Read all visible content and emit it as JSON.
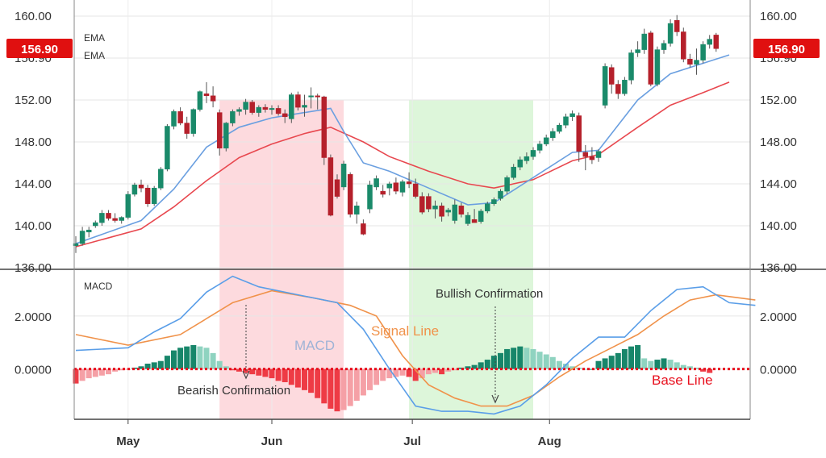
{
  "chart_data": {
    "type": "candlestick-macd",
    "colors": {
      "up": "#1a8a6a",
      "down": "#b5202b",
      "ema_fast": "#6a9fe0",
      "ema_slow": "#e8484f",
      "macd": "#5a9ee8",
      "signal": "#f0924a",
      "hist_up_strong": "#17866a",
      "hist_up_weak": "#8fd3c0",
      "hist_down_strong": "#ee3b45",
      "hist_down_weak": "#f5a0a6",
      "base_line": "#e8101e",
      "bearish_zone": "#fdd3d8",
      "bullish_zone": "#d7f5d4",
      "badge": "#e01010"
    },
    "price_panel": {
      "legend": [
        "EMA",
        "EMA"
      ],
      "yticks": [
        "160.00",
        "156.90",
        "152.00",
        "148.00",
        "144.00",
        "140.00",
        "136.00"
      ],
      "ytick_values": [
        160,
        156,
        152,
        148,
        144,
        140,
        136
      ],
      "ylim": [
        136,
        160.5
      ],
      "last_price": 156.9,
      "last_price_label": "156.90",
      "candles": [
        [
          138.1,
          139.0,
          137.4,
          138.3
        ],
        [
          138.3,
          139.9,
          138.1,
          139.5
        ],
        [
          139.4,
          139.9,
          138.9,
          139.6
        ],
        [
          140.0,
          140.5,
          139.8,
          140.3
        ],
        [
          140.3,
          141.5,
          140.0,
          141.2
        ],
        [
          141.2,
          141.5,
          140.5,
          140.7
        ],
        [
          140.7,
          141.2,
          140.3,
          140.5
        ],
        [
          140.5,
          140.9,
          140.2,
          140.8
        ],
        [
          140.8,
          143.3,
          140.6,
          143.0
        ],
        [
          143.0,
          144.1,
          142.8,
          143.9
        ],
        [
          143.9,
          144.4,
          143.2,
          143.6
        ],
        [
          143.6,
          143.9,
          141.8,
          142.1
        ],
        [
          142.1,
          143.8,
          141.9,
          143.6
        ],
        [
          143.6,
          145.6,
          143.4,
          145.4
        ],
        [
          145.4,
          149.7,
          145.2,
          149.5
        ],
        [
          149.5,
          151.1,
          149.2,
          150.9
        ],
        [
          150.9,
          151.3,
          149.6,
          149.8
        ],
        [
          149.8,
          150.4,
          148.3,
          148.8
        ],
        [
          148.8,
          151.2,
          148.5,
          151.1
        ],
        [
          151.1,
          152.9,
          150.9,
          152.8
        ],
        [
          152.6,
          153.7,
          151.7,
          152.4
        ],
        [
          152.4,
          153.3,
          151.3,
          151.9
        ],
        [
          150.8,
          151.1,
          146.7,
          147.4
        ],
        [
          147.4,
          149.9,
          147.1,
          149.8
        ],
        [
          149.8,
          151.1,
          149.5,
          150.9
        ],
        [
          150.9,
          151.3,
          150.5,
          151.1
        ],
        [
          151.1,
          152.1,
          150.6,
          151.8
        ],
        [
          151.8,
          152.0,
          150.6,
          150.8
        ],
        [
          150.8,
          151.5,
          150.4,
          151.3
        ],
        [
          151.3,
          151.6,
          150.8,
          151.1
        ],
        [
          151.1,
          151.5,
          150.6,
          151.2
        ],
        [
          151.2,
          151.5,
          150.5,
          150.7
        ],
        [
          150.7,
          151.1,
          149.8,
          150.4
        ],
        [
          150.2,
          152.7,
          149.8,
          152.5
        ],
        [
          152.5,
          152.8,
          151.0,
          151.3
        ],
        [
          151.3,
          152.5,
          150.4,
          151.5
        ],
        [
          152.3,
          153.2,
          151.2,
          152.4
        ],
        [
          152.4,
          152.6,
          151.1,
          152.3
        ],
        [
          152.3,
          152.4,
          145.8,
          146.5
        ],
        [
          146.5,
          146.8,
          140.9,
          141.0
        ],
        [
          144.4,
          144.9,
          142.6,
          142.8
        ],
        [
          143.7,
          146.2,
          143.4,
          145.9
        ],
        [
          144.9,
          145.1,
          140.8,
          141.1
        ],
        [
          141.1,
          142.3,
          140.2,
          141.9
        ],
        [
          140.2,
          140.6,
          139.1,
          139.2
        ],
        [
          141.6,
          144.3,
          141.2,
          143.9
        ],
        [
          143.7,
          144.8,
          143.4,
          144.5
        ],
        [
          143.3,
          143.9,
          142.7,
          143.0
        ],
        [
          143.6,
          144.2,
          142.9,
          144.0
        ],
        [
          144.1,
          144.6,
          143.0,
          143.3
        ],
        [
          143.2,
          144.4,
          142.8,
          144.2
        ],
        [
          144.2,
          145.1,
          143.6,
          144.0
        ],
        [
          144.0,
          144.5,
          142.6,
          142.8
        ],
        [
          142.8,
          143.2,
          141.1,
          141.3
        ],
        [
          142.8,
          143.1,
          141.3,
          141.6
        ],
        [
          141.6,
          142.4,
          140.7,
          141.9
        ],
        [
          141.9,
          142.2,
          140.4,
          140.9
        ],
        [
          141.3,
          141.7,
          140.9,
          141.5
        ],
        [
          140.5,
          142.5,
          140.2,
          142.0
        ],
        [
          141.9,
          142.2,
          140.8,
          141.1
        ],
        [
          140.2,
          141.3,
          140.0,
          141.0
        ],
        [
          140.6,
          141.6,
          140.3,
          140.3
        ],
        [
          140.4,
          141.6,
          140.2,
          141.4
        ],
        [
          141.4,
          142.3,
          141.2,
          142.1
        ],
        [
          142.1,
          142.7,
          141.9,
          142.5
        ],
        [
          142.6,
          143.5,
          142.4,
          143.3
        ],
        [
          143.3,
          144.8,
          143.0,
          144.6
        ],
        [
          144.6,
          145.9,
          144.4,
          145.6
        ],
        [
          145.6,
          146.6,
          145.3,
          146.3
        ],
        [
          146.2,
          147.0,
          145.9,
          146.6
        ],
        [
          146.6,
          147.5,
          146.3,
          147.2
        ],
        [
          147.2,
          148.1,
          146.9,
          147.8
        ],
        [
          147.8,
          148.7,
          147.6,
          148.4
        ],
        [
          148.4,
          149.3,
          148.1,
          149.0
        ],
        [
          149.0,
          149.8,
          148.8,
          149.6
        ],
        [
          149.6,
          150.7,
          149.3,
          150.4
        ],
        [
          150.4,
          151.0,
          150.0,
          150.7
        ],
        [
          150.5,
          150.8,
          146.1,
          147.1
        ],
        [
          147.0,
          147.7,
          145.3,
          146.6
        ],
        [
          146.6,
          147.5,
          145.9,
          146.3
        ],
        [
          146.5,
          147.3,
          146.1,
          147.1
        ],
        [
          151.5,
          155.5,
          151.2,
          155.2
        ],
        [
          155.1,
          155.4,
          152.6,
          153.5
        ],
        [
          153.5,
          153.9,
          152.1,
          152.6
        ],
        [
          152.6,
          154.2,
          152.4,
          153.9
        ],
        [
          153.9,
          156.8,
          153.5,
          156.5
        ],
        [
          156.5,
          157.6,
          156.1,
          156.8
        ],
        [
          156.8,
          158.8,
          156.4,
          158.3
        ],
        [
          158.4,
          158.6,
          153.3,
          153.5
        ],
        [
          153.5,
          157.1,
          153.3,
          156.8
        ],
        [
          156.8,
          157.7,
          156.4,
          157.4
        ],
        [
          157.4,
          159.7,
          157.1,
          159.3
        ],
        [
          159.6,
          160.1,
          158.1,
          158.5
        ],
        [
          158.5,
          158.9,
          155.6,
          155.9
        ],
        [
          155.9,
          156.4,
          155.1,
          155.4
        ],
        [
          155.4,
          156.9,
          154.4,
          155.8
        ],
        [
          155.8,
          157.6,
          155.5,
          157.3
        ],
        [
          157.3,
          158.2,
          156.9,
          157.8
        ],
        [
          158.2,
          158.4,
          156.6,
          156.9
        ]
      ],
      "ema_fast": [
        [
          0,
          138.3
        ],
        [
          10,
          140.5
        ],
        [
          15,
          143.5
        ],
        [
          20,
          147.5
        ],
        [
          25,
          149.4
        ],
        [
          30,
          150.3
        ],
        [
          35,
          150.8
        ],
        [
          39,
          151.2
        ],
        [
          41,
          149.0
        ],
        [
          44,
          146.0
        ],
        [
          48,
          145.2
        ],
        [
          54,
          143.6
        ],
        [
          60,
          142.0
        ],
        [
          64,
          142.2
        ],
        [
          70,
          144.6
        ],
        [
          76,
          147.0
        ],
        [
          80,
          147.2
        ],
        [
          86,
          152.0
        ],
        [
          91,
          154.5
        ],
        [
          96,
          155.5
        ],
        [
          100,
          156.3
        ]
      ],
      "ema_slow": [
        [
          0,
          138.0
        ],
        [
          10,
          139.7
        ],
        [
          15,
          141.8
        ],
        [
          20,
          144.3
        ],
        [
          25,
          146.5
        ],
        [
          30,
          147.8
        ],
        [
          35,
          148.8
        ],
        [
          39,
          149.4
        ],
        [
          44,
          148.0
        ],
        [
          48,
          146.6
        ],
        [
          54,
          145.2
        ],
        [
          60,
          144.0
        ],
        [
          64,
          143.6
        ],
        [
          70,
          144.4
        ],
        [
          76,
          146.2
        ],
        [
          80,
          146.8
        ],
        [
          86,
          149.4
        ],
        [
          91,
          151.5
        ],
        [
          96,
          152.7
        ],
        [
          100,
          153.7
        ]
      ]
    },
    "macd_panel": {
      "label": "MACD",
      "yticks": [
        "2.0000",
        "0.0000"
      ],
      "ytick_values": [
        2,
        0
      ],
      "ylim": [
        -1.9,
        3.7
      ],
      "macd": [
        [
          0,
          0.7
        ],
        [
          8,
          0.8
        ],
        [
          12,
          1.4
        ],
        [
          16,
          1.9
        ],
        [
          20,
          2.9
        ],
        [
          24,
          3.5
        ],
        [
          28,
          3.1
        ],
        [
          34,
          2.8
        ],
        [
          40,
          2.5
        ],
        [
          44,
          1.5
        ],
        [
          48,
          0.0
        ],
        [
          52,
          -1.4
        ],
        [
          56,
          -1.6
        ],
        [
          60,
          -1.6
        ],
        [
          64,
          -1.7
        ],
        [
          68,
          -1.4
        ],
        [
          72,
          -0.6
        ],
        [
          76,
          0.4
        ],
        [
          80,
          1.2
        ],
        [
          84,
          1.2
        ],
        [
          88,
          2.2
        ],
        [
          92,
          3.0
        ],
        [
          96,
          3.1
        ],
        [
          100,
          2.5
        ],
        [
          104,
          2.4
        ]
      ],
      "signal": [
        [
          0,
          1.3
        ],
        [
          8,
          0.9
        ],
        [
          16,
          1.3
        ],
        [
          24,
          2.5
        ],
        [
          30,
          2.95
        ],
        [
          36,
          2.7
        ],
        [
          42,
          2.4
        ],
        [
          46,
          2.0
        ],
        [
          50,
          0.5
        ],
        [
          54,
          -0.6
        ],
        [
          58,
          -1.1
        ],
        [
          62,
          -1.4
        ],
        [
          66,
          -1.4
        ],
        [
          70,
          -1.0
        ],
        [
          74,
          -0.3
        ],
        [
          78,
          0.3
        ],
        [
          82,
          0.8
        ],
        [
          86,
          1.3
        ],
        [
          90,
          2.0
        ],
        [
          94,
          2.6
        ],
        [
          98,
          2.8
        ],
        [
          104,
          2.6
        ]
      ],
      "histogram": [
        -0.55,
        -0.45,
        -0.35,
        -0.3,
        -0.25,
        -0.2,
        -0.1,
        -0.05,
        -0.02,
        0.05,
        0.1,
        0.2,
        0.25,
        0.3,
        0.5,
        0.7,
        0.8,
        0.85,
        0.9,
        0.85,
        0.8,
        0.6,
        0.3,
        0.1,
        -0.05,
        -0.1,
        -0.15,
        -0.2,
        -0.25,
        -0.3,
        -0.35,
        -0.45,
        -0.5,
        -0.6,
        -0.7,
        -0.8,
        -0.9,
        -1.1,
        -1.3,
        -1.5,
        -1.6,
        -1.55,
        -1.4,
        -1.2,
        -1.0,
        -0.8,
        -0.6,
        -0.45,
        -0.35,
        -0.3,
        -0.25,
        -0.3,
        -0.45,
        -0.35,
        -0.2,
        -0.15,
        -0.2,
        -0.1,
        -0.05,
        0.05,
        0.1,
        0.15,
        0.25,
        0.35,
        0.5,
        0.6,
        0.75,
        0.8,
        0.85,
        0.8,
        0.75,
        0.65,
        0.55,
        0.45,
        0.3,
        0.2,
        0.1,
        0.05,
        0.0,
        0.0,
        0.3,
        0.4,
        0.5,
        0.6,
        0.75,
        0.85,
        0.9,
        0.4,
        0.3,
        0.35,
        0.4,
        0.35,
        0.25,
        0.15,
        0.1,
        0.05,
        -0.1,
        -0.15
      ],
      "signal_label": "Signal Line",
      "macd_label": "MACD",
      "base_label": "Base Line"
    },
    "x_axis": {
      "labels": [
        "May",
        "Jun",
        "Jul",
        "Aug"
      ],
      "label_positions": [
        8,
        30,
        51.5,
        72.5
      ]
    },
    "zones": [
      {
        "type": "bearish",
        "from": 22,
        "to": 41
      },
      {
        "type": "bullish",
        "from": 51,
        "to": 70
      }
    ],
    "annotations": {
      "bearish": "Bearish Confirmation",
      "bullish": "Bullish Confirmation"
    }
  }
}
